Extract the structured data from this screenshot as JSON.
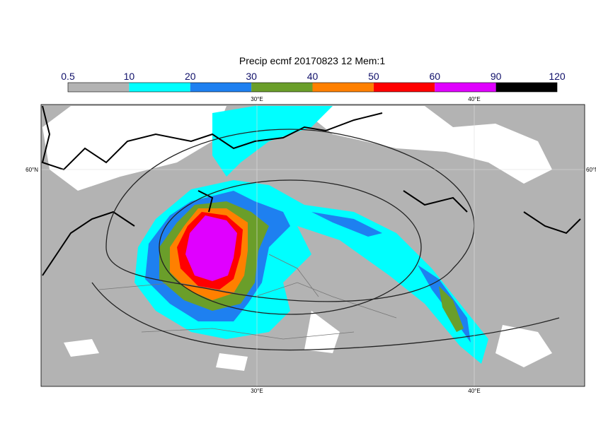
{
  "title": "Precip ecmf 20170823 12 Mem:1",
  "colorbar": {
    "bounds": [
      0.5,
      10,
      20,
      30,
      40,
      50,
      60,
      90,
      120
    ],
    "colors": [
      "#b3b3b3",
      "#00ffff",
      "#1e80f0",
      "#6a9e2a",
      "#ff8000",
      "#ff0000",
      "#e000ff",
      "#000000"
    ]
  },
  "map": {
    "lon_labels": [
      "30°E",
      "40°E"
    ],
    "lat_label": "60°N"
  }
}
